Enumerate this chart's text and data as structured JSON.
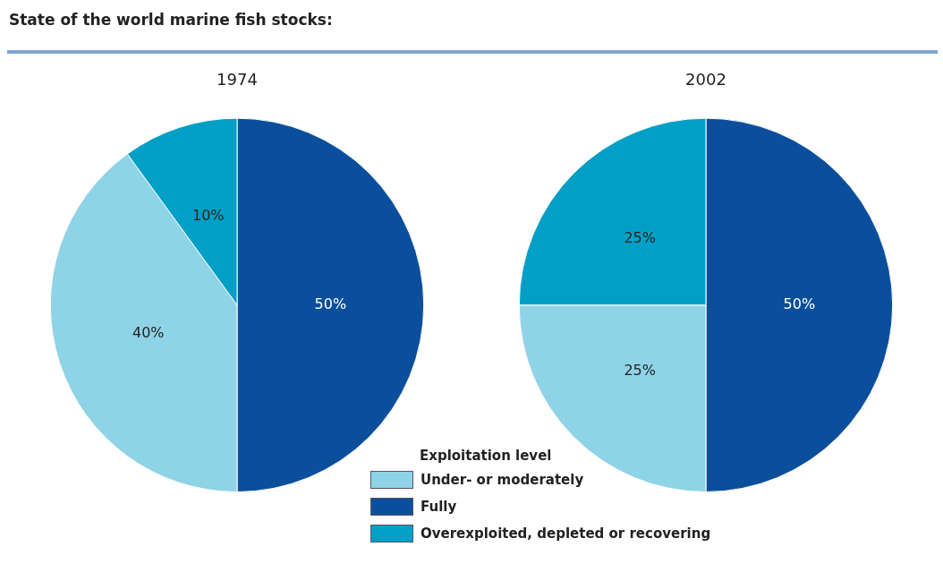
{
  "chart_data": [
    {
      "type": "pie",
      "title": "1974",
      "annotations": [
        "State of the world marine fish stocks:"
      ],
      "categories": [
        null,
        null,
        null
      ],
      "values": [
        50,
        40,
        10
      ],
      "value_labels": [
        "50%",
        "40%",
        "10%"
      ],
      "colors": [
        "#0b4f9c",
        "#8fd3e6",
        "#00a0c6"
      ],
      "legend": false
    },
    {
      "type": "pie",
      "title": "2002",
      "legend_title": "Exploitation level",
      "categories": [
        "Fully",
        "Under- or moderately",
        "Overexploited, depleted or recovering"
      ],
      "values": [
        50,
        25,
        25
      ],
      "value_labels": [
        "50%",
        "25%",
        "25%"
      ],
      "colors": [
        "#0b4f9c",
        "#8fd3e6",
        "#00a0c6"
      ],
      "legend": "bottom left"
    }
  ]
}
